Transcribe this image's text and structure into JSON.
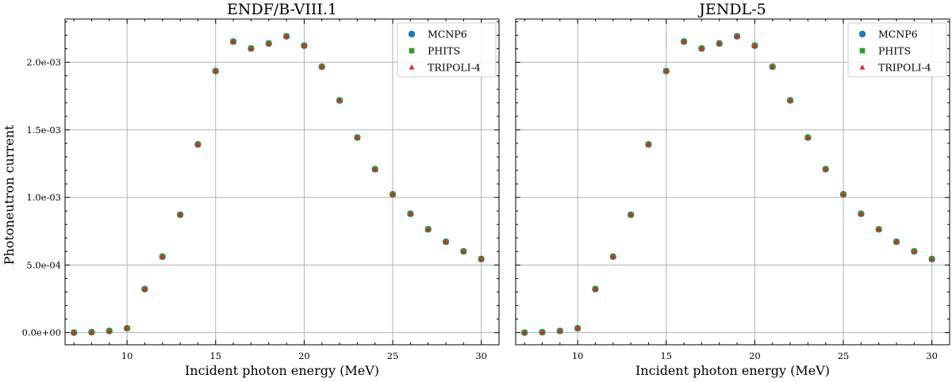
{
  "colors": {
    "mcnp6": "#1f77b4",
    "phits": "#2ca02c",
    "tripoli4": "#d62728",
    "grid": "#b0b0b0"
  },
  "chart_data": [
    {
      "type": "scatter",
      "title": "ENDF/B-VIII.1",
      "xlabel": "Incident photon energy (MeV)",
      "ylabel": "Photoneutron current",
      "xlim": [
        6.5,
        31.0
      ],
      "ylim": [
        -9e-05,
        0.00232
      ],
      "xticks": [
        10,
        15,
        20,
        25,
        30
      ],
      "yticks": [
        0.0,
        0.0005,
        0.001,
        0.0015,
        0.002
      ],
      "ytick_labels": [
        "0.0e+00",
        "5.0e-04",
        "1.0e-03",
        "1.5e-03",
        "2.0e-03"
      ],
      "grid": true,
      "legend_position": "top-right",
      "x": [
        7,
        8,
        9,
        10,
        11,
        12,
        13,
        14,
        15,
        16,
        17,
        18,
        19,
        20,
        21,
        22,
        23,
        24,
        25,
        26,
        27,
        28,
        29,
        30
      ],
      "series": [
        {
          "name": "MCNP6",
          "marker": "circle",
          "values": [
            0.0,
            3e-06,
            1.2e-05,
            3.2e-05,
            0.000322,
            0.000562,
            0.000872,
            0.001392,
            0.001935,
            0.002153,
            0.002102,
            0.002139,
            0.002192,
            0.002123,
            0.001967,
            0.001718,
            0.001443,
            0.001209,
            0.001023,
            0.000879,
            0.000764,
            0.000672,
            0.000601,
            0.000544
          ]
        },
        {
          "name": "PHITS",
          "marker": "square",
          "values": [
            0.0,
            3e-06,
            1.2e-05,
            3.2e-05,
            0.000322,
            0.000562,
            0.000872,
            0.001392,
            0.001935,
            0.002153,
            0.002102,
            0.002139,
            0.002192,
            0.002123,
            0.001967,
            0.001718,
            0.001443,
            0.001209,
            0.001023,
            0.000879,
            0.000764,
            0.000672,
            0.000601,
            0.000544
          ]
        },
        {
          "name": "TRIPOLI-4",
          "marker": "triangle",
          "values": [
            0.0,
            3e-06,
            1.2e-05,
            3.2e-05,
            0.000322,
            0.000562,
            0.000872,
            0.001392,
            0.001935,
            0.002153,
            0.002102,
            0.002139,
            0.002192,
            0.002123,
            0.001967,
            0.001718,
            0.001443,
            0.001209,
            0.001023,
            0.000879,
            0.000764,
            0.000672,
            0.000601,
            0.000544
          ]
        }
      ]
    },
    {
      "type": "scatter",
      "title": "JENDL-5",
      "xlabel": "Incident photon energy (MeV)",
      "ylabel": "",
      "xlim": [
        6.5,
        31.0
      ],
      "ylim": [
        -9e-05,
        0.00232
      ],
      "xticks": [
        10,
        15,
        20,
        25,
        30
      ],
      "yticks": [
        0.0,
        0.0005,
        0.001,
        0.0015,
        0.002
      ],
      "ytick_labels": [],
      "grid": true,
      "legend_position": "top-right",
      "x": [
        7,
        8,
        9,
        10,
        11,
        12,
        13,
        14,
        15,
        16,
        17,
        18,
        19,
        20,
        21,
        22,
        23,
        24,
        25,
        26,
        27,
        28,
        29,
        30
      ],
      "series": [
        {
          "name": "MCNP6",
          "marker": "circle",
          "values": [
            0.0,
            3e-06,
            1.2e-05,
            3.2e-05,
            0.000322,
            0.000562,
            0.000872,
            0.001392,
            0.001935,
            0.002153,
            0.002102,
            0.002139,
            0.002192,
            0.002123,
            0.001967,
            0.001718,
            0.001443,
            0.001209,
            0.001023,
            0.000879,
            0.000764,
            0.000672,
            0.000601,
            0.000544
          ]
        },
        {
          "name": "PHITS",
          "marker": "square",
          "values": [
            0.0,
            3e-06,
            1.2e-05,
            3.2e-05,
            0.000322,
            0.000562,
            0.000872,
            0.001392,
            0.001935,
            0.002153,
            0.002102,
            0.002139,
            0.002192,
            0.002123,
            0.001967,
            0.001718,
            0.001443,
            0.001209,
            0.001023,
            0.000879,
            0.000764,
            0.000672,
            0.000601,
            0.000544
          ]
        },
        {
          "name": "TRIPOLI-4",
          "marker": "triangle",
          "values": [
            0.0,
            3e-06,
            1.2e-05,
            3.2e-05,
            0.000322,
            0.000562,
            0.000872,
            0.001392,
            0.001935,
            0.002153,
            0.002102,
            0.002139,
            0.002192,
            0.002123,
            0.001967,
            0.001718,
            0.001443,
            0.001209,
            0.001023,
            0.000879,
            0.000764,
            0.000672,
            0.000601,
            0.000544
          ]
        }
      ]
    }
  ]
}
